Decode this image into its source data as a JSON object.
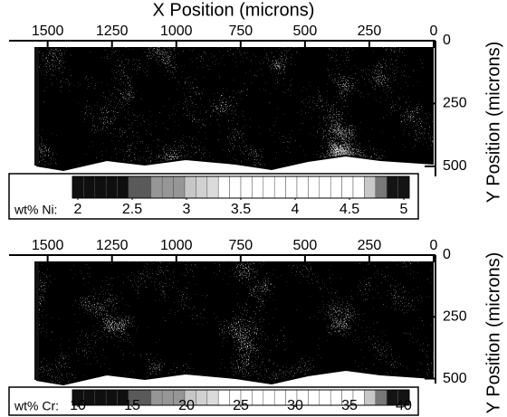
{
  "chart_data": [
    {
      "type": "heatmap",
      "title": "X Position (microns)",
      "y_label": "Y Position (microns)",
      "xlim": [
        1650,
        0
      ],
      "xticks": [
        1500,
        1250,
        1000,
        750,
        500,
        250,
        0
      ],
      "ylim": [
        0,
        540
      ],
      "yticks": [
        0,
        250,
        500
      ],
      "colorbar": {
        "label": "wt% Ni:",
        "lim": [
          1.95,
          5.05
        ],
        "ticks": [
          2,
          2.5,
          3,
          3.5,
          4,
          4.5,
          5
        ]
      }
    },
    {
      "type": "heatmap",
      "y_label": "Y Position (microns)",
      "xlim": [
        1650,
        0
      ],
      "xticks": [
        1500,
        1250,
        1000,
        750,
        500,
        250,
        0
      ],
      "ylim": [
        0,
        520
      ],
      "yticks": [
        0,
        250,
        500
      ],
      "colorbar": {
        "label": "wt% Cr:",
        "lim": [
          9.5,
          40.5
        ],
        "ticks": [
          10,
          15,
          20,
          25,
          30,
          35,
          40
        ]
      }
    }
  ]
}
